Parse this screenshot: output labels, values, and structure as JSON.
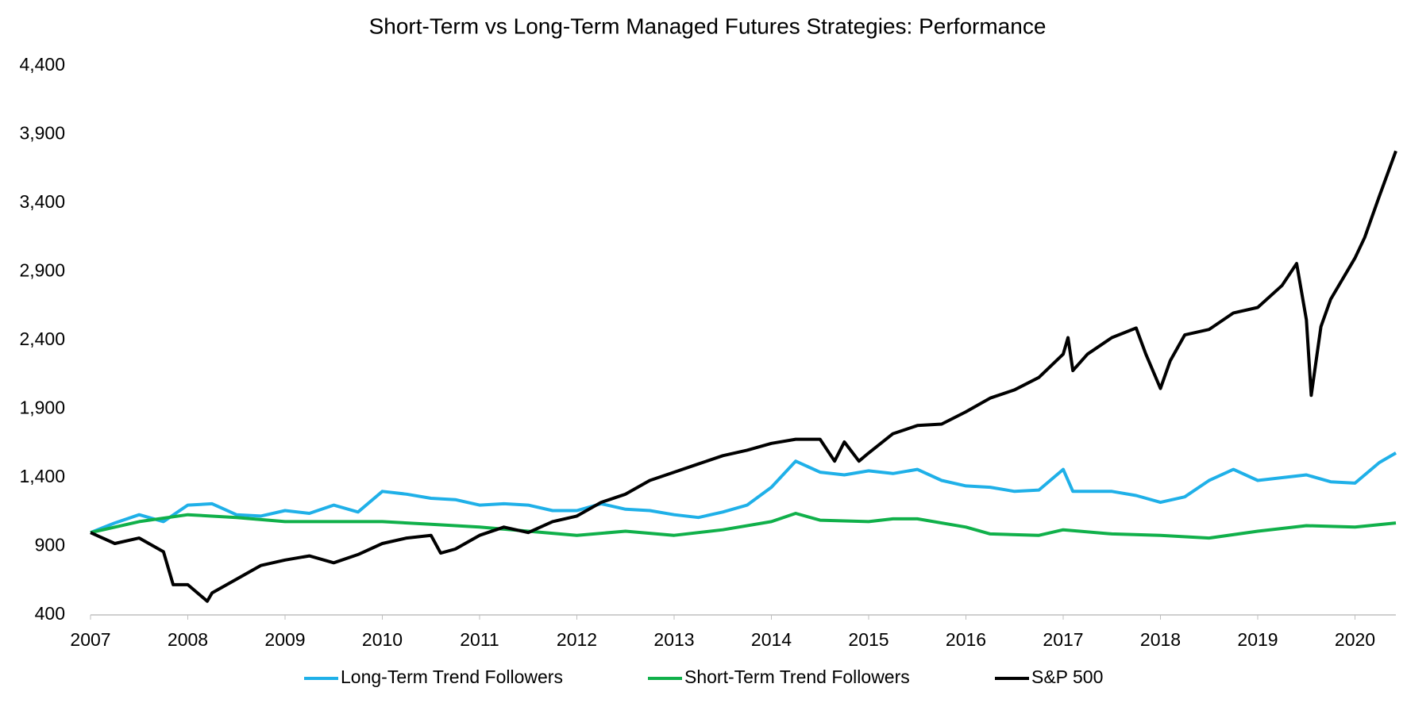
{
  "chart_data": {
    "type": "line",
    "title": "Short-Term vs Long-Term Managed Futures Strategies: Performance",
    "xlim": [
      2007,
      2020.42
    ],
    "xticks": [
      2007,
      2008,
      2009,
      2010,
      2011,
      2012,
      2013,
      2014,
      2015,
      2016,
      2017,
      2018,
      2019,
      2020
    ],
    "ylim": [
      400,
      4400
    ],
    "yticks": [
      {
        "value": 400,
        "label": "400"
      },
      {
        "value": 900,
        "label": "900"
      },
      {
        "value": 1400,
        "label": "1,400"
      },
      {
        "value": 1900,
        "label": "1,900"
      },
      {
        "value": 2400,
        "label": "2,400"
      },
      {
        "value": 2900,
        "label": "2,900"
      },
      {
        "value": 3400,
        "label": "3,400"
      },
      {
        "value": 3900,
        "label": "3,900"
      },
      {
        "value": 4400,
        "label": "4,400"
      }
    ],
    "grid": false,
    "legend": "bottom",
    "series": [
      {
        "name": "Long-Term Trend Followers",
        "color": "#1fb0e8",
        "x": [
          2007,
          2007.25,
          2007.5,
          2007.75,
          2008,
          2008.25,
          2008.5,
          2008.75,
          2009,
          2009.25,
          2009.5,
          2009.75,
          2010,
          2010.25,
          2010.5,
          2010.75,
          2011,
          2011.25,
          2011.5,
          2011.75,
          2012,
          2012.25,
          2012.5,
          2012.75,
          2013,
          2013.25,
          2013.5,
          2013.75,
          2014,
          2014.25,
          2014.5,
          2014.75,
          2015,
          2015.25,
          2015.5,
          2015.75,
          2016,
          2016.25,
          2016.5,
          2016.75,
          2017,
          2017.1,
          2017.25,
          2017.5,
          2017.75,
          2018,
          2018.25,
          2018.5,
          2018.75,
          2019,
          2019.25,
          2019.5,
          2019.75,
          2020,
          2020.25,
          2020.42
        ],
        "values": [
          1000,
          1070,
          1130,
          1080,
          1200,
          1210,
          1130,
          1120,
          1160,
          1140,
          1200,
          1150,
          1300,
          1280,
          1250,
          1240,
          1200,
          1210,
          1200,
          1160,
          1160,
          1210,
          1170,
          1160,
          1130,
          1110,
          1150,
          1200,
          1330,
          1520,
          1440,
          1420,
          1450,
          1430,
          1460,
          1380,
          1340,
          1330,
          1300,
          1310,
          1460,
          1300,
          1300,
          1300,
          1270,
          1220,
          1260,
          1380,
          1460,
          1380,
          1400,
          1420,
          1370,
          1360,
          1510,
          1580
        ]
      },
      {
        "name": "Short-Term Trend Followers",
        "color": "#10b04a",
        "x": [
          2007,
          2007.5,
          2008,
          2008.5,
          2009,
          2009.5,
          2010,
          2010.5,
          2011,
          2011.5,
          2012,
          2012.5,
          2013,
          2013.5,
          2014,
          2014.25,
          2014.5,
          2015,
          2015.25,
          2015.5,
          2016,
          2016.25,
          2016.75,
          2017,
          2017.5,
          2018,
          2018.5,
          2019,
          2019.5,
          2020,
          2020.42
        ],
        "values": [
          1000,
          1080,
          1130,
          1110,
          1080,
          1080,
          1080,
          1060,
          1040,
          1010,
          980,
          1010,
          980,
          1020,
          1080,
          1140,
          1090,
          1080,
          1100,
          1100,
          1040,
          990,
          980,
          1020,
          990,
          980,
          960,
          1010,
          1050,
          1040,
          1070
        ]
      },
      {
        "name": "S&P 500",
        "color": "#000000",
        "x": [
          2007,
          2007.25,
          2007.5,
          2007.75,
          2007.85,
          2008,
          2008.2,
          2008.25,
          2008.5,
          2008.75,
          2009,
          2009.25,
          2009.5,
          2009.75,
          2010,
          2010.25,
          2010.5,
          2010.6,
          2010.75,
          2011,
          2011.25,
          2011.5,
          2011.75,
          2012,
          2012.25,
          2012.5,
          2012.75,
          2013,
          2013.25,
          2013.5,
          2013.75,
          2014,
          2014.25,
          2014.5,
          2014.65,
          2014.75,
          2014.9,
          2015,
          2015.25,
          2015.5,
          2015.75,
          2016,
          2016.25,
          2016.5,
          2016.75,
          2017,
          2017.05,
          2017.1,
          2017.25,
          2017.5,
          2017.75,
          2017.85,
          2018,
          2018.1,
          2018.25,
          2018.5,
          2018.75,
          2019,
          2019.25,
          2019.4,
          2019.5,
          2019.55,
          2019.65,
          2019.75,
          2020,
          2020.1,
          2020.25,
          2020.42
        ],
        "values": [
          1000,
          920,
          960,
          860,
          620,
          620,
          500,
          560,
          660,
          760,
          800,
          830,
          780,
          840,
          920,
          960,
          980,
          850,
          880,
          980,
          1040,
          1000,
          1080,
          1120,
          1220,
          1280,
          1380,
          1440,
          1500,
          1560,
          1600,
          1650,
          1680,
          1680,
          1520,
          1660,
          1520,
          1580,
          1720,
          1780,
          1790,
          1880,
          1980,
          2040,
          2130,
          2300,
          2420,
          2180,
          2300,
          2420,
          2490,
          2300,
          2050,
          2250,
          2440,
          2480,
          2600,
          2640,
          2800,
          2960,
          2550,
          2000,
          2500,
          2700,
          3000,
          3150,
          3450,
          3780
        ]
      }
    ]
  }
}
